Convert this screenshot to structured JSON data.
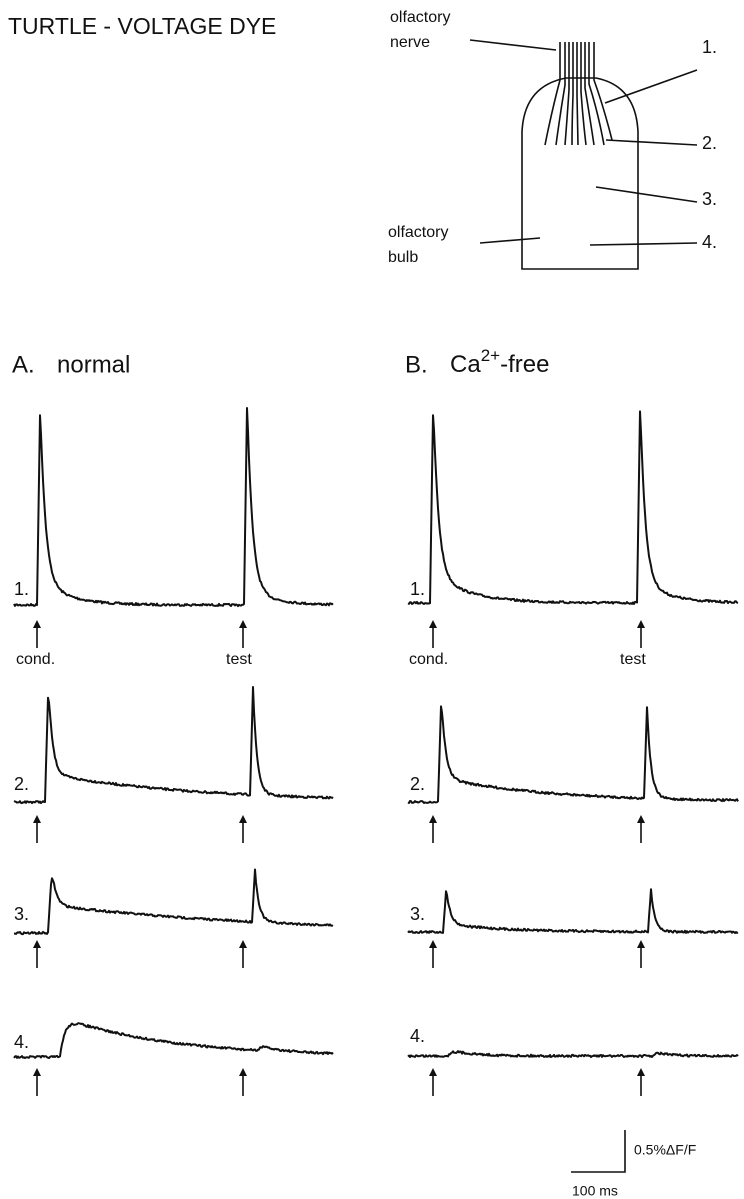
{
  "title": "TURTLE - VOLTAGE DYE",
  "diagram": {
    "nerve_label": [
      "olfactory",
      "nerve"
    ],
    "bulb_label": [
      "olfactory",
      "bulb"
    ],
    "regions": [
      "1.",
      "2.",
      "3.",
      "4."
    ]
  },
  "panels": [
    {
      "letter": "A.",
      "condition": "normal",
      "trace_labels": [
        "1.",
        "2.",
        "3.",
        "4."
      ],
      "stimulus_labels": [
        "cond.",
        "test"
      ]
    },
    {
      "letter": "B.",
      "condition_parts": [
        "Ca",
        "2+",
        "-free"
      ],
      "trace_labels": [
        "1.",
        "2.",
        "3.",
        "4."
      ],
      "stimulus_labels": [
        "cond.",
        "test"
      ]
    }
  ],
  "scale_bar": {
    "y_label": "0.5%ΔF/F",
    "x_label": "100 ms"
  }
}
